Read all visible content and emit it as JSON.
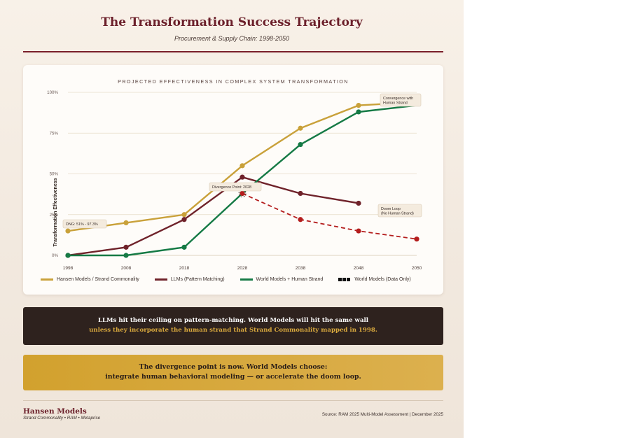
{
  "header": {
    "title": "The Transformation Success Trajectory",
    "subtitle": "Procurement & Supply Chain: 1998-2050"
  },
  "chart_data": {
    "type": "line",
    "title": "PROJECTED EFFECTIVENESS IN COMPLEX SYSTEM TRANSFORMATION",
    "ylabel": "Transformation Effectiveness",
    "xlabel": "",
    "ylim": [
      0,
      100
    ],
    "y_ticks": [
      0,
      25,
      50,
      75,
      100
    ],
    "y_tick_labels": [
      "0%",
      "25%",
      "50%",
      "75%",
      "100%"
    ],
    "x": [
      "1998",
      "2008",
      "2018",
      "2028",
      "2038",
      "2048",
      "2050"
    ],
    "grid": true,
    "legend_position": "bottom",
    "series": [
      {
        "name": "Hansen Models / Strand Commonality",
        "color": "#c9a13a",
        "style": "solid",
        "x": [
          "1998",
          "2008",
          "2018",
          "2028",
          "2038",
          "2048",
          "2050"
        ],
        "values": [
          15,
          20,
          25,
          55,
          78,
          92,
          94
        ]
      },
      {
        "name": "LLMs (Pattern Matching)",
        "color": "#6f222a",
        "style": "solid",
        "x": [
          "1998",
          "2008",
          "2018",
          "2028",
          "2038",
          "2048"
        ],
        "values": [
          0,
          5,
          22,
          48,
          38,
          32
        ]
      },
      {
        "name": "World Models + Human Strand",
        "color": "#157a45",
        "style": "solid",
        "x": [
          "1998",
          "2008",
          "2018",
          "2028",
          "2038",
          "2048",
          "2050"
        ],
        "values": [
          0,
          0,
          5,
          38,
          68,
          88,
          92
        ]
      },
      {
        "name": "World Models (Data Only)",
        "color": "#b41d1d",
        "style": "dashed",
        "x": [
          "2028",
          "2038",
          "2048",
          "2050"
        ],
        "values": [
          38,
          22,
          15,
          10
        ]
      }
    ],
    "annotations": [
      {
        "text": "DNG: 51% - 97.3%",
        "x": "1998",
        "y": 18
      },
      {
        "text": "Divergence Point: 2028",
        "x": "2028",
        "y": 42
      },
      {
        "text": "Convergence with Human Strand",
        "x": "2050",
        "y": 95
      },
      {
        "text": "Doom Loop (No Human Strand)",
        "x": "2050",
        "y": 28
      }
    ]
  },
  "panels": {
    "dark_line1": "LLMs hit their ceiling on pattern-matching. World Models will hit the same wall",
    "dark_line2": "unless they incorporate the human strand that Strand Commonality mapped in 1998.",
    "gold_line1": "The divergence point is now. World Models choose:",
    "gold_line2": "integrate human behavioral modeling — or accelerate the doom loop."
  },
  "footer": {
    "brand": "Hansen Models",
    "brand_sub": "Strand Commonality • RAM • Metaprise",
    "source": "Source: RAM 2025 Multi-Model Assessment | December 2025"
  }
}
